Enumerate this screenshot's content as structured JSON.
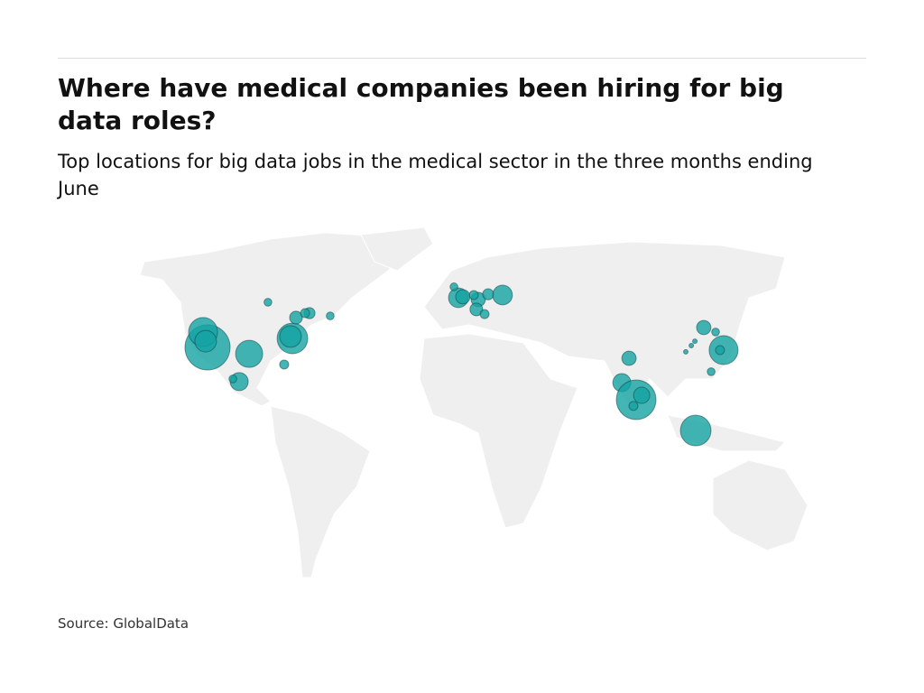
{
  "header": {
    "title": "Where have medical companies been hiring for big data roles?",
    "subtitle": "Top locations for big data jobs in the medical sector in the three months ending June"
  },
  "chart_data": {
    "type": "bubble-map",
    "color": "#14a3a3",
    "points": [
      {
        "lon": -118.8,
        "lat": 29.1,
        "value": 100
      },
      {
        "lon": -120.9,
        "lat": 35.3,
        "value": 41
      },
      {
        "lon": -119.7,
        "lat": 31.6,
        "value": 23
      },
      {
        "lon": -99.1,
        "lat": 26.5,
        "value": 36
      },
      {
        "lon": -103.8,
        "lat": 15.3,
        "value": 16
      },
      {
        "lon": -106.8,
        "lat": 16.4,
        "value": 3
      },
      {
        "lon": -78.6,
        "lat": 32.7,
        "value": 46
      },
      {
        "lon": -79.5,
        "lat": 33.5,
        "value": 23
      },
      {
        "lon": -82.5,
        "lat": 22.2,
        "value": 4
      },
      {
        "lon": -76.9,
        "lat": 41.1,
        "value": 8
      },
      {
        "lon": -70.5,
        "lat": 42.9,
        "value": 6
      },
      {
        "lon": -72.6,
        "lat": 42.9,
        "value": 4
      },
      {
        "lon": -60.7,
        "lat": 41.8,
        "value": 3
      },
      {
        "lon": -90.2,
        "lat": 47.3,
        "value": 3
      },
      {
        "lon": 0,
        "lat": 49.1,
        "value": 19
      },
      {
        "lon": -2.1,
        "lat": 53.5,
        "value": 3
      },
      {
        "lon": 2.1,
        "lat": 49.5,
        "value": 10
      },
      {
        "lon": 9.4,
        "lat": 48.4,
        "value": 10
      },
      {
        "lon": 14.1,
        "lat": 50.5,
        "value": 6
      },
      {
        "lon": 20.9,
        "lat": 50.2,
        "value": 19
      },
      {
        "lon": 8.5,
        "lat": 44.4,
        "value": 8
      },
      {
        "lon": 12.4,
        "lat": 42.5,
        "value": 4
      },
      {
        "lon": 7.3,
        "lat": 50.2,
        "value": 4
      },
      {
        "lon": 80.8,
        "lat": 24.7,
        "value": 10
      },
      {
        "lon": 77.4,
        "lat": 14.9,
        "value": 16
      },
      {
        "lon": 84.2,
        "lat": 8.0,
        "value": 77
      },
      {
        "lon": 86.8,
        "lat": 9.8,
        "value": 13
      },
      {
        "lon": 82.9,
        "lat": 5.5,
        "value": 4
      },
      {
        "lon": 116.2,
        "lat": 37.1,
        "value": 10
      },
      {
        "lon": 121.8,
        "lat": 35.3,
        "value": 3
      },
      {
        "lon": 125.6,
        "lat": 28.0,
        "value": 41
      },
      {
        "lon": 123.9,
        "lat": 28.0,
        "value": 4
      },
      {
        "lon": 112.0,
        "lat": 31.6,
        "value": 1
      },
      {
        "lon": 110.3,
        "lat": 29.8,
        "value": 1
      },
      {
        "lon": 107.7,
        "lat": 27.3,
        "value": 1
      },
      {
        "lon": 119.7,
        "lat": 19.3,
        "value": 3
      },
      {
        "lon": 112.4,
        "lat": -4.4,
        "value": 46
      }
    ]
  },
  "footer": {
    "source": "Source: GlobalData"
  }
}
